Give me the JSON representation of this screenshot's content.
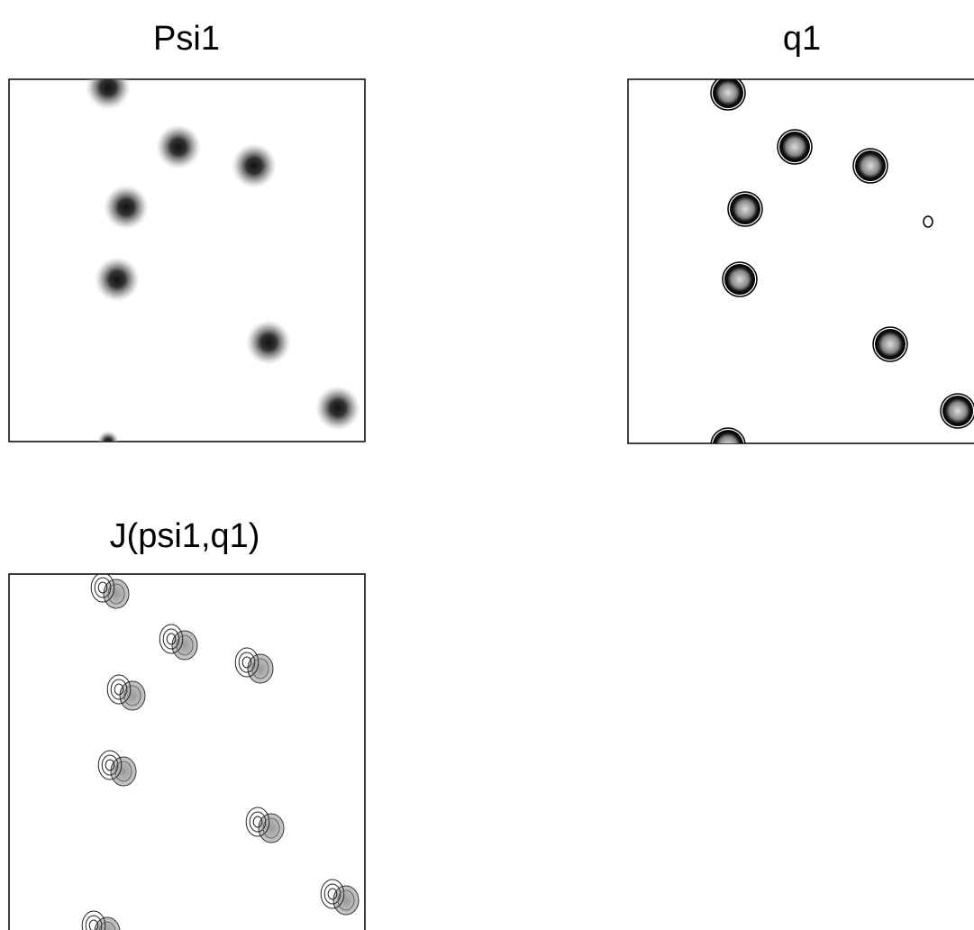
{
  "panels": [
    {
      "title": "Psi1"
    },
    {
      "title": "q1"
    },
    {
      "title": "J(psi1,q1)"
    }
  ]
}
